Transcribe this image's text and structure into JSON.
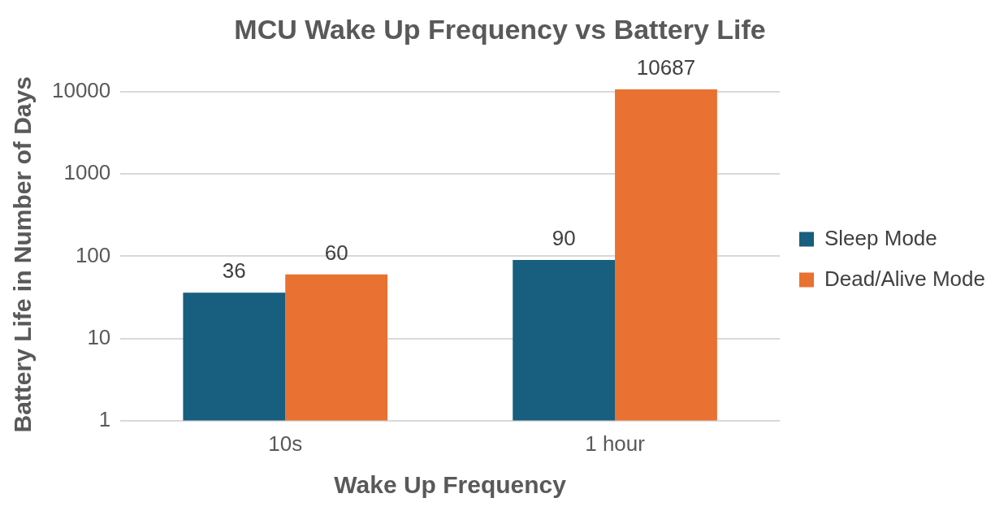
{
  "chart_data": {
    "type": "bar",
    "title": "MCU Wake Up Frequency vs Battery Life",
    "xlabel": "Wake Up Frequency",
    "ylabel": "Battery Life in Number of Days",
    "categories": [
      "10s",
      "1 hour"
    ],
    "series": [
      {
        "name": "Sleep Mode",
        "color": "#175e7f",
        "values": [
          36,
          90
        ]
      },
      {
        "name": "Dead/Alive Mode",
        "color": "#e97132",
        "values": [
          60,
          10687
        ]
      }
    ],
    "log": "y",
    "ylim": [
      1,
      11000
    ],
    "yticks": [
      1,
      10,
      100,
      1000,
      10000
    ],
    "grid": "y",
    "legend": "right",
    "data_labels": true
  }
}
